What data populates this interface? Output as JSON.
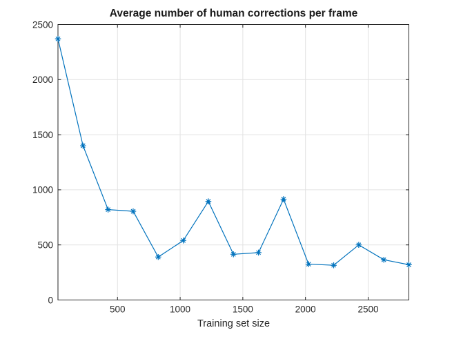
{
  "chart_data": {
    "type": "line",
    "title": "Average number of human corrections per frame",
    "xlabel": "Training set size",
    "ylabel": "",
    "x": [
      25,
      225,
      425,
      625,
      825,
      1025,
      1225,
      1425,
      1625,
      1825,
      2025,
      2225,
      2425,
      2625,
      2825
    ],
    "y": [
      2370,
      1400,
      820,
      805,
      390,
      540,
      895,
      415,
      430,
      915,
      325,
      315,
      500,
      365,
      320
    ],
    "xlim": [
      25,
      2825
    ],
    "ylim": [
      0,
      2500
    ],
    "xticks": [
      500,
      1000,
      1500,
      2000,
      2500
    ],
    "yticks": [
      0,
      500,
      1000,
      1500,
      2000,
      2500
    ],
    "grid": true,
    "legend": null,
    "marker": "asterisk",
    "line_color": "#0072BD",
    "axis_color": "#262626",
    "grid_color": "#e2e2e2",
    "background_color": "#ffffff"
  }
}
